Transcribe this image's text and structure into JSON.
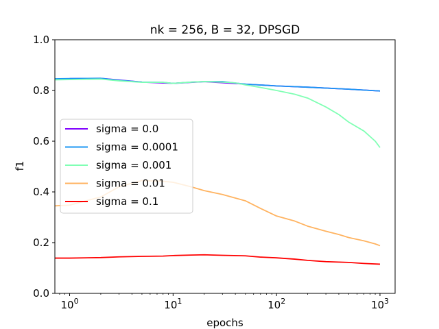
{
  "chart_data": {
    "type": "line",
    "title": "nk = 256, B = 32, DPSGD",
    "xlabel": "epochs",
    "ylabel": "f1",
    "xscale": "log",
    "xlim": [
      0.72,
      1400
    ],
    "ylim": [
      0.0,
      1.0
    ],
    "xticks": [
      {
        "value": 1,
        "base": "10",
        "exp": "0"
      },
      {
        "value": 10,
        "base": "10",
        "exp": "1"
      },
      {
        "value": 100,
        "base": "10",
        "exp": "2"
      },
      {
        "value": 1000,
        "base": "10",
        "exp": "3"
      }
    ],
    "yticks": [
      "0.0",
      "0.2",
      "0.4",
      "0.6",
      "0.8",
      "1.0"
    ],
    "grid": false,
    "legend_position": "center-left",
    "series": [
      {
        "name": "sigma = 0.0",
        "color": "#8000ff",
        "x": [
          1,
          2,
          5,
          10,
          20,
          50,
          100,
          200,
          500,
          1000
        ],
        "y": [
          0.847,
          0.848,
          0.833,
          0.828,
          0.835,
          0.825,
          0.818,
          0.813,
          0.805,
          0.798
        ]
      },
      {
        "name": "sigma = 0.0001",
        "color": "#1996f3",
        "x": [
          0.72,
          1,
          2,
          3,
          5,
          8,
          10,
          15,
          20,
          30,
          50,
          100,
          200,
          500,
          1000
        ],
        "y": [
          0.846,
          0.847,
          0.848,
          0.84,
          0.833,
          0.832,
          0.828,
          0.833,
          0.835,
          0.835,
          0.825,
          0.818,
          0.813,
          0.805,
          0.798
        ]
      },
      {
        "name": "sigma = 0.001",
        "color": "#80ffb4",
        "x": [
          0.72,
          1,
          2,
          3,
          5,
          8,
          10,
          15,
          20,
          30,
          40,
          50,
          70,
          100,
          150,
          200,
          300,
          400,
          500,
          700,
          900,
          1000
        ],
        "y": [
          0.842,
          0.843,
          0.845,
          0.838,
          0.832,
          0.832,
          0.828,
          0.833,
          0.835,
          0.833,
          0.83,
          0.822,
          0.812,
          0.8,
          0.785,
          0.77,
          0.735,
          0.705,
          0.675,
          0.64,
          0.6,
          0.575
        ]
      },
      {
        "name": "sigma = 0.01",
        "color": "#ffb360",
        "x": [
          0.72,
          1,
          2,
          3,
          5,
          8,
          10,
          15,
          20,
          30,
          50,
          70,
          100,
          150,
          200,
          300,
          400,
          500,
          700,
          900,
          1000
        ],
        "y": [
          0.345,
          0.348,
          0.38,
          0.42,
          0.445,
          0.442,
          0.438,
          0.42,
          0.405,
          0.39,
          0.365,
          0.335,
          0.305,
          0.285,
          0.265,
          0.245,
          0.232,
          0.22,
          0.207,
          0.195,
          0.188
        ]
      },
      {
        "name": "sigma = 0.1",
        "color": "#ff0000",
        "x": [
          0.72,
          1,
          2,
          3,
          5,
          8,
          10,
          15,
          20,
          30,
          50,
          70,
          100,
          150,
          200,
          300,
          500,
          700,
          1000
        ],
        "y": [
          0.139,
          0.139,
          0.141,
          0.144,
          0.146,
          0.147,
          0.149,
          0.151,
          0.152,
          0.15,
          0.148,
          0.143,
          0.14,
          0.135,
          0.13,
          0.125,
          0.122,
          0.118,
          0.115
        ]
      }
    ]
  }
}
